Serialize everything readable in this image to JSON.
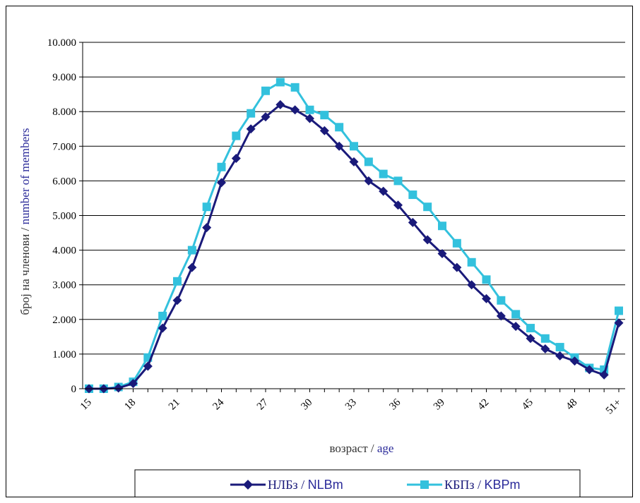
{
  "chart_data": {
    "type": "line",
    "title": "",
    "xlabel_parts": [
      "возраст / ",
      "age"
    ],
    "ylabel_parts": [
      "број на членови / ",
      "number of members"
    ],
    "ylim": [
      0,
      10000
    ],
    "yticks": [
      "0",
      "1.000",
      "2.000",
      "3.000",
      "4.000",
      "5.000",
      "6.000",
      "7.000",
      "8.000",
      "9.000",
      "10.000"
    ],
    "grid": "horizontal",
    "legend_position": "bottom",
    "x": [
      "15",
      "16",
      "17",
      "18",
      "19",
      "20",
      "21",
      "22",
      "23",
      "24",
      "25",
      "26",
      "27",
      "28",
      "29",
      "30",
      "31",
      "32",
      "33",
      "34",
      "35",
      "36",
      "37",
      "38",
      "39",
      "40",
      "41",
      "42",
      "43",
      "44",
      "45",
      "46",
      "47",
      "48",
      "49",
      "50",
      "51+"
    ],
    "xtick_labels": [
      "15",
      "18",
      "21",
      "24",
      "27",
      "30",
      "33",
      "36",
      "39",
      "42",
      "45",
      "48",
      "51+"
    ],
    "series": [
      {
        "name_parts": [
          "НЛБз",
          " / ",
          "NLBm"
        ],
        "color": "#1a1a7a",
        "marker": "diamond",
        "values": [
          0,
          0,
          20,
          150,
          650,
          1750,
          2550,
          3500,
          4650,
          5950,
          6650,
          7500,
          7850,
          8200,
          8050,
          7800,
          7450,
          7000,
          6550,
          6000,
          5700,
          5300,
          4800,
          4300,
          3900,
          3500,
          3000,
          2600,
          2100,
          1800,
          1450,
          1150,
          950,
          800,
          550,
          400,
          1900
        ]
      },
      {
        "name_parts": [
          "КБПз",
          " / ",
          "KBPm"
        ],
        "color": "#33c1dd",
        "marker": "square",
        "values": [
          0,
          0,
          50,
          200,
          900,
          2100,
          3100,
          4000,
          5250,
          6400,
          7300,
          7950,
          8600,
          8850,
          8700,
          8050,
          7900,
          7550,
          7000,
          6550,
          6200,
          6000,
          5600,
          5250,
          4700,
          4200,
          3650,
          3150,
          2550,
          2150,
          1750,
          1450,
          1200,
          900,
          600,
          550,
          2250
        ]
      }
    ]
  }
}
